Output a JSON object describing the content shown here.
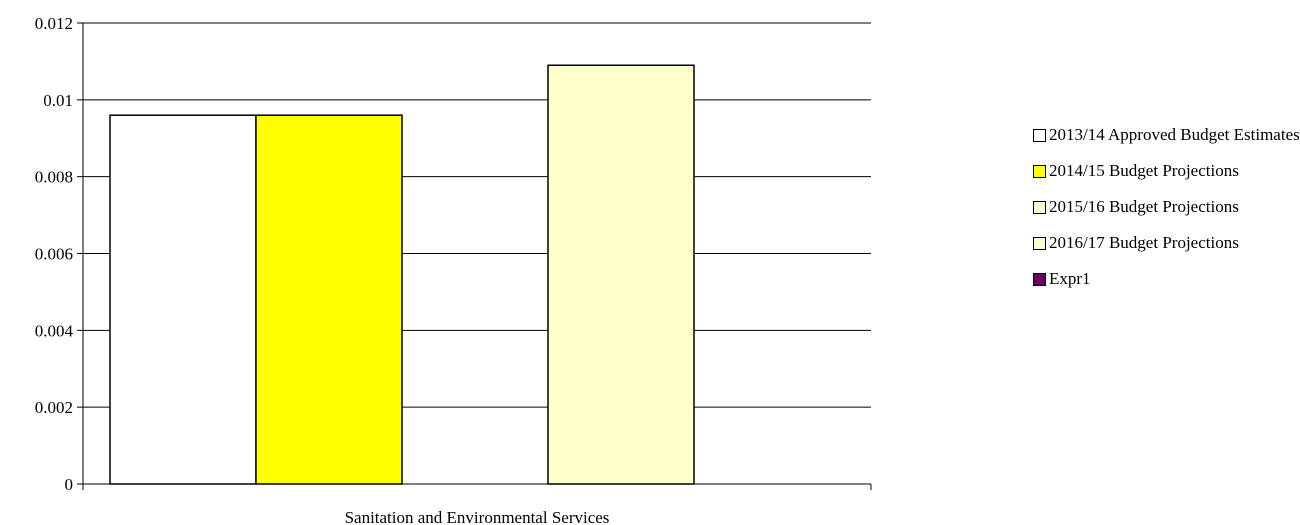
{
  "chart_data": {
    "type": "bar",
    "categories": [
      "Sanitation and Environmental Services"
    ],
    "series": [
      {
        "name": "2013/14 Approved Budget Estimates",
        "values": [
          0.0096
        ],
        "color": "#FFFFFF"
      },
      {
        "name": "2014/15 Budget Projections",
        "values": [
          0.0096
        ],
        "color": "#FFFF00"
      },
      {
        "name": "2015/16 Budget Projections",
        "values": [
          0.0
        ],
        "color": "#FFFFCC"
      },
      {
        "name": "2016/17 Budget Projections",
        "values": [
          0.0109
        ],
        "color": "#FFFFCC"
      },
      {
        "name": "Expr1",
        "values": [
          0.0
        ],
        "color": "#660066"
      }
    ],
    "title": "",
    "xlabel": "",
    "ylabel": "",
    "ylim": [
      0,
      0.012
    ],
    "yticks": [
      "0",
      "0.002",
      "0.004",
      "0.006",
      "0.008",
      "0.01",
      "0.012"
    ],
    "grid": true,
    "legend_position": "right"
  }
}
